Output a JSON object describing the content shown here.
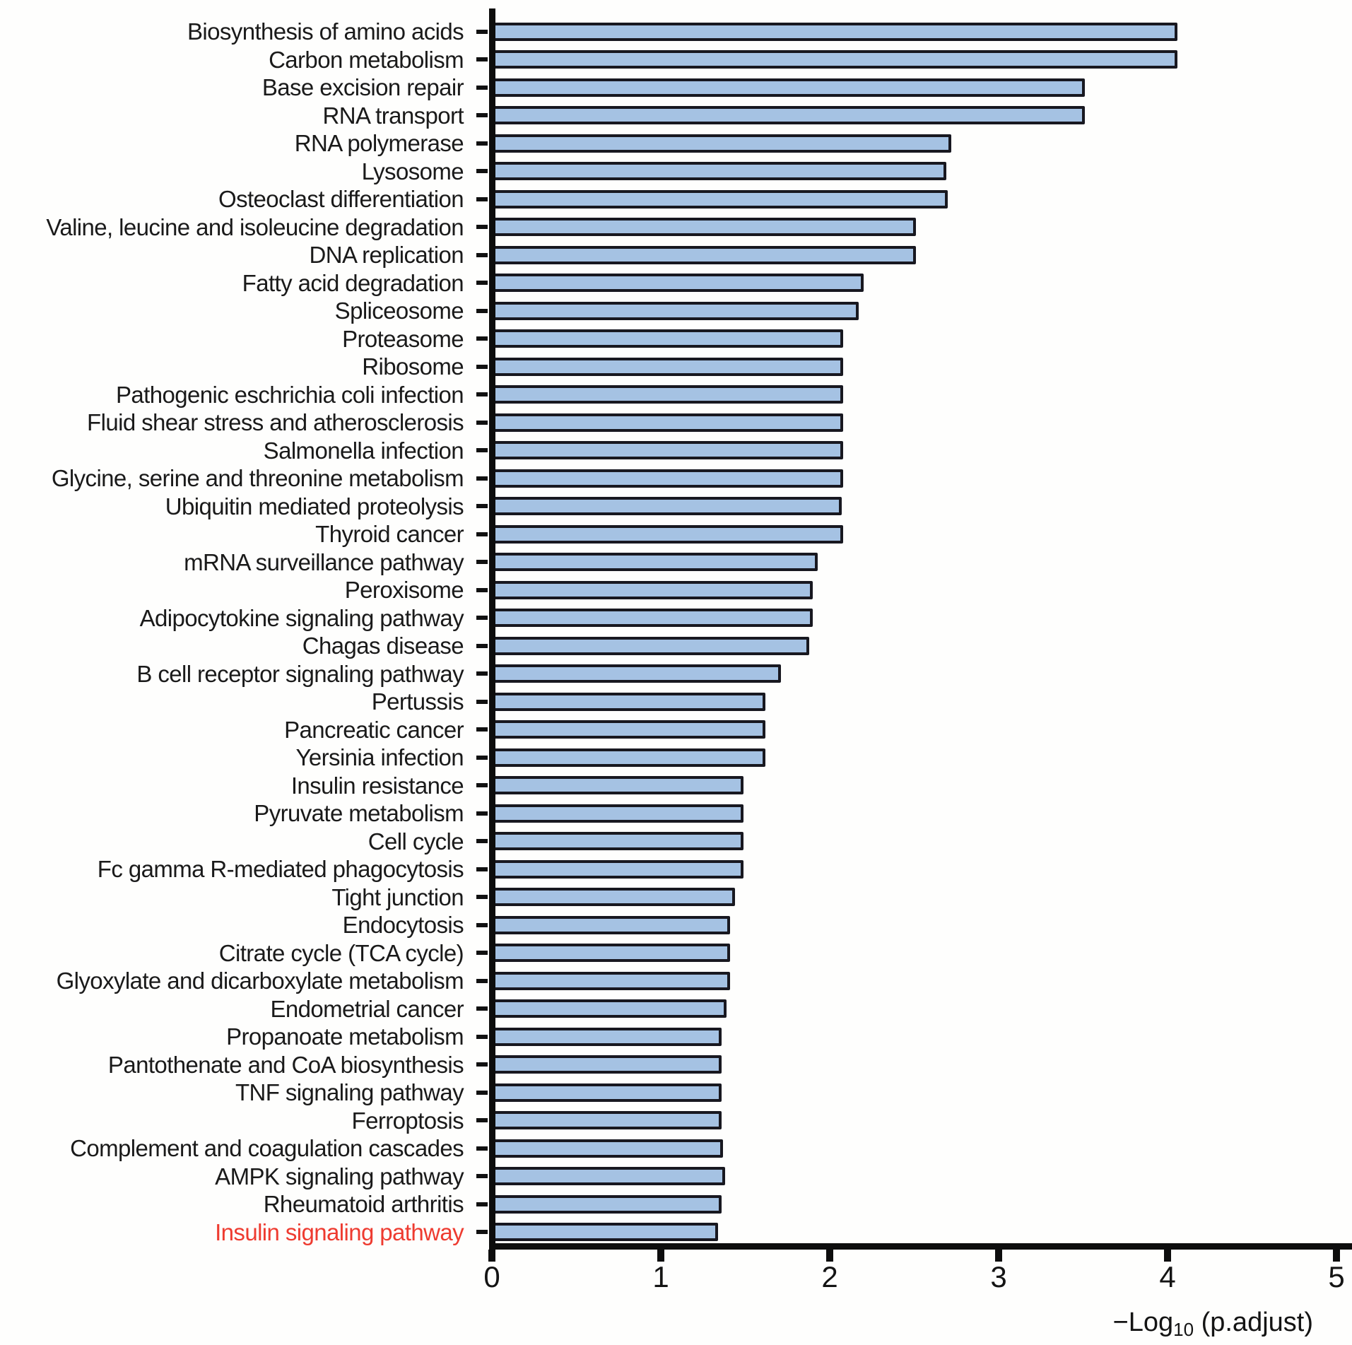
{
  "chart_data": {
    "type": "bar",
    "orientation": "horizontal",
    "title": "",
    "xlabel": "-Log10 (p.adjust)",
    "xlabel_prefix": "−Log",
    "xlabel_sub": "10",
    "xlabel_suffix": " (p.adjust)",
    "ylabel": "",
    "xlim": [
      0,
      5
    ],
    "xticks": [
      "0",
      "1",
      "2",
      "3",
      "4",
      "5"
    ],
    "grid": false,
    "legend": "none",
    "bar_fill_color": "#a5c2e3",
    "bar_border_color": "#181820",
    "axis_color": "#0d0d0d",
    "label_color": "#1a1a1a",
    "highlight_color": "#ee3b30",
    "highlighted_category": "Insulin signaling pathway",
    "categories": [
      "Biosynthesis of amino acids",
      "Carbon metabolism",
      "Base excision repair",
      "RNA transport",
      "RNA polymerase",
      "Lysosome",
      "Osteoclast differentiation",
      "Valine, leucine and isoleucine degradation",
      "DNA replication",
      "Fatty acid degradation",
      "Spliceosome",
      "Proteasome",
      "Ribosome",
      "Pathogenic eschrichia coli infection",
      "Fluid shear stress and atherosclerosis",
      "Salmonella infection",
      "Glycine, serine and threonine metabolism",
      "Ubiquitin mediated proteolysis",
      "Thyroid cancer",
      "mRNA surveillance pathway",
      "Peroxisome",
      "Adipocytokine signaling pathway",
      "Chagas disease",
      "B cell receptor signaling pathway",
      "Pertussis",
      "Pancreatic cancer",
      "Yersinia infection",
      "Insulin resistance",
      "Pyruvate metabolism",
      "Cell cycle",
      "Fc gamma R-mediated phagocytosis",
      "Tight junction",
      "Endocytosis",
      "Citrate cycle (TCA cycle)",
      "Glyoxylate and dicarboxylate metabolism",
      "Endometrial cancer",
      "Propanoate metabolism",
      "Pantothenate and CoA biosynthesis",
      "TNF signaling pathway",
      "Ferroptosis",
      "Complement and coagulation cascades",
      "AMPK signaling pathway",
      "Rheumatoid arthritis",
      "Insulin signaling pathway"
    ],
    "values": [
      4.06,
      4.06,
      3.51,
      3.51,
      2.72,
      2.69,
      2.7,
      2.51,
      2.51,
      2.2,
      2.17,
      2.08,
      2.08,
      2.08,
      2.08,
      2.08,
      2.08,
      2.07,
      2.08,
      1.93,
      1.9,
      1.9,
      1.88,
      1.71,
      1.62,
      1.62,
      1.62,
      1.49,
      1.49,
      1.49,
      1.49,
      1.44,
      1.41,
      1.41,
      1.41,
      1.39,
      1.36,
      1.36,
      1.36,
      1.36,
      1.37,
      1.38,
      1.36,
      1.34
    ]
  }
}
